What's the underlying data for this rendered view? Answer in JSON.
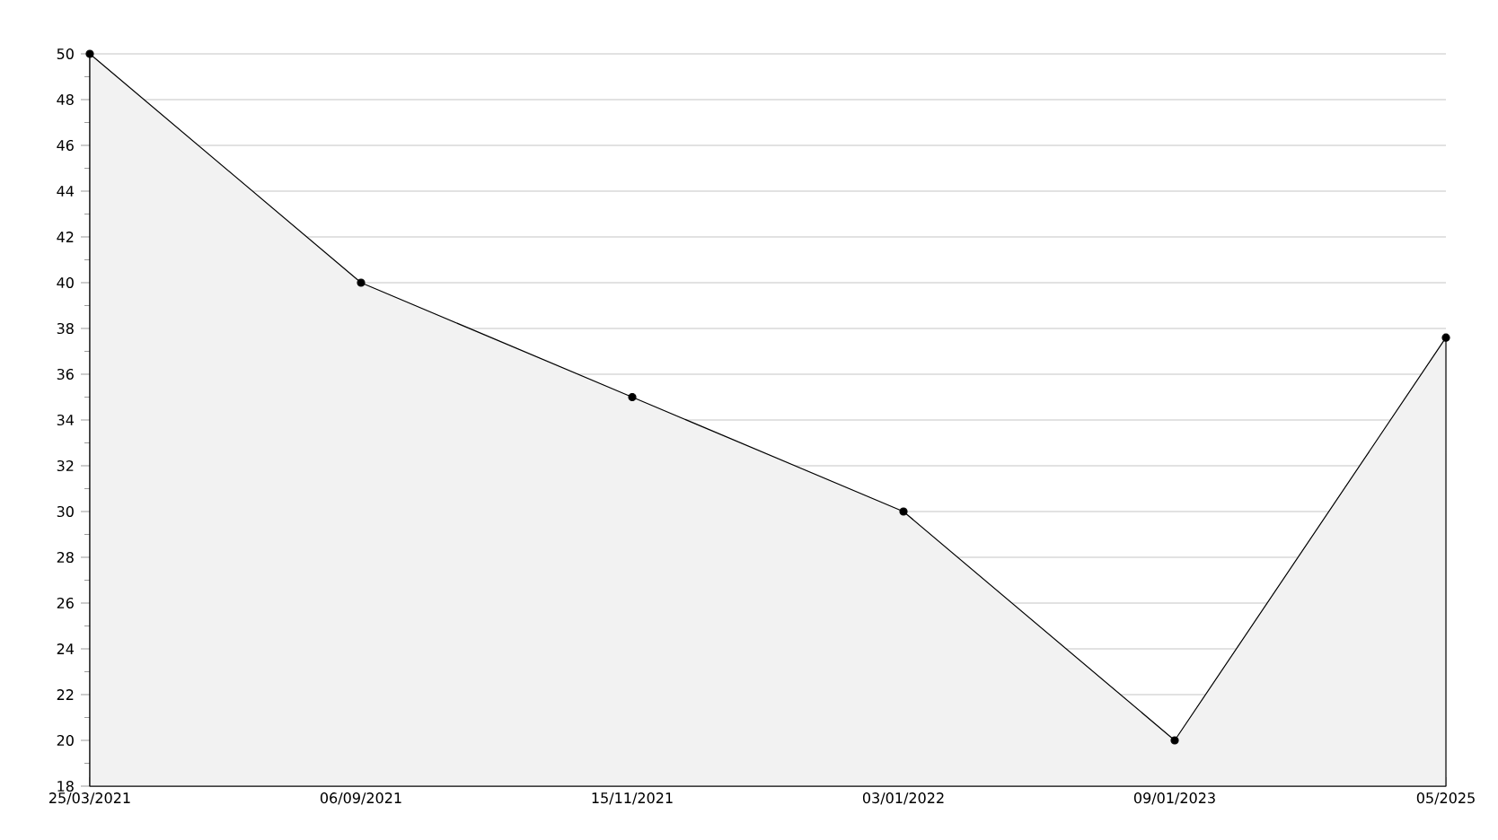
{
  "chart_data": {
    "type": "area",
    "categories": [
      "25/03/2021",
      "06/09/2021",
      "15/11/2021",
      "03/01/2022",
      "09/01/2023",
      "05/2025"
    ],
    "values": [
      50,
      40,
      35,
      30,
      20,
      37.6
    ],
    "color": "#000000",
    "ylim": [
      18,
      50
    ],
    "yticks": [
      18,
      20,
      22,
      24,
      26,
      28,
      30,
      32,
      34,
      36,
      38,
      40,
      42,
      44,
      46,
      48,
      50
    ],
    "grid": "y",
    "marker": "circle",
    "line_style": "solid"
  }
}
